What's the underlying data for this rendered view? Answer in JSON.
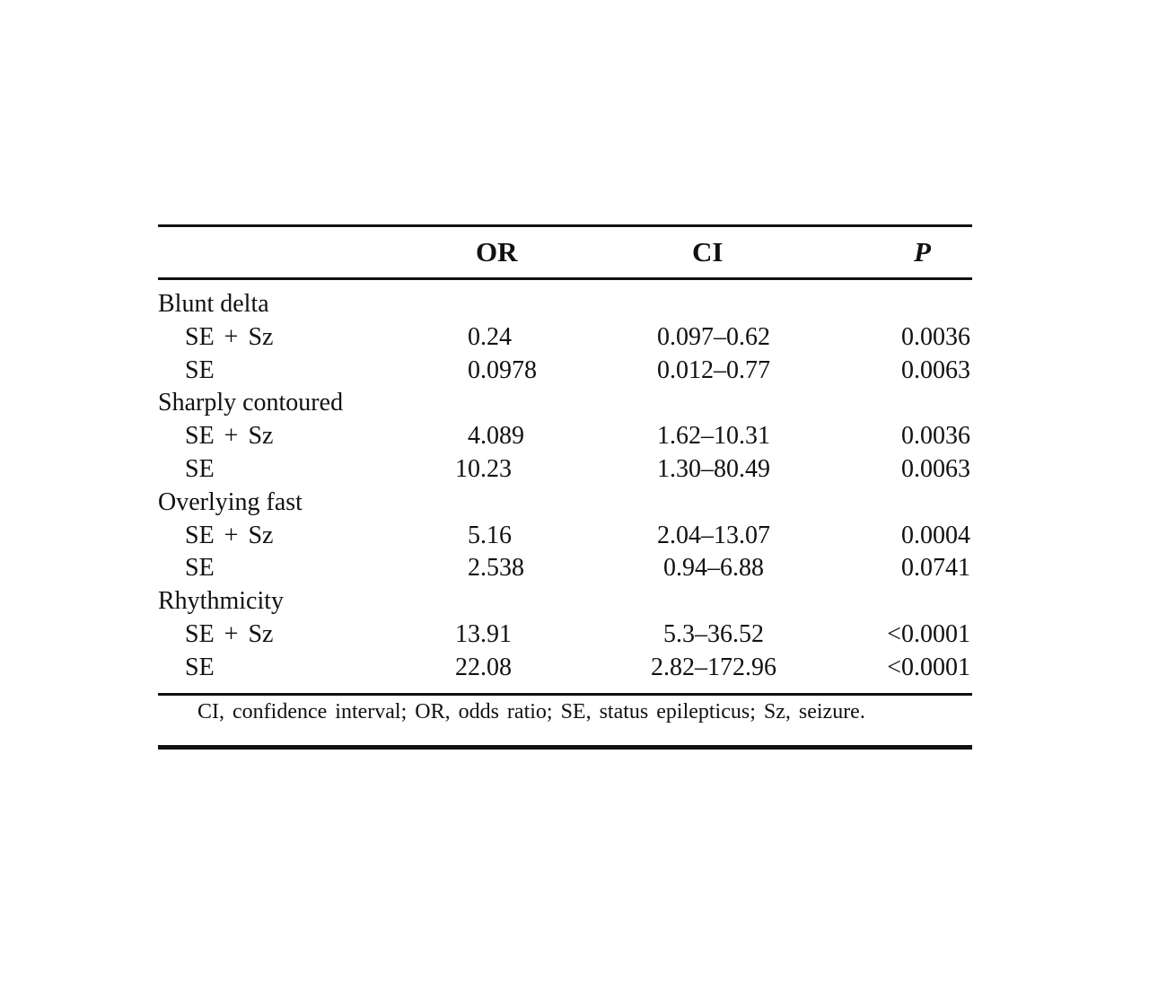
{
  "table": {
    "headers": {
      "or": "OR",
      "ci": "CI",
      "p": "P"
    },
    "groups": [
      {
        "label": "Blunt delta",
        "rows": [
          {
            "label": "SE + Sz",
            "or": "0.24",
            "ci": "0.097–0.62",
            "p": "0.0036"
          },
          {
            "label": "SE",
            "or": "0.0978",
            "ci": "0.012–0.77",
            "p": "0.0063"
          }
        ]
      },
      {
        "label": "Sharply contoured",
        "rows": [
          {
            "label": "SE + Sz",
            "or": "4.089",
            "ci": "1.62–10.31",
            "p": "0.0036"
          },
          {
            "label": "SE",
            "or": "10.23",
            "ci": "1.30–80.49",
            "p": "0.0063"
          }
        ]
      },
      {
        "label": "Overlying fast",
        "rows": [
          {
            "label": "SE + Sz",
            "or": "5.16",
            "ci": "2.04–13.07",
            "p": "0.0004"
          },
          {
            "label": "SE",
            "or": "2.538",
            "ci": "0.94–6.88",
            "p": "0.0741"
          }
        ]
      },
      {
        "label": "Rhythmicity",
        "rows": [
          {
            "label": "SE + Sz",
            "or": "13.91",
            "ci": "5.3–36.52",
            "p": "<0.0001"
          },
          {
            "label": "SE",
            "or": "22.08",
            "ci": "2.82–172.96",
            "p": "<0.0001"
          }
        ]
      }
    ],
    "footnote": "CI, confidence interval; OR, odds ratio; SE, status epilepticus; Sz, seizure."
  }
}
